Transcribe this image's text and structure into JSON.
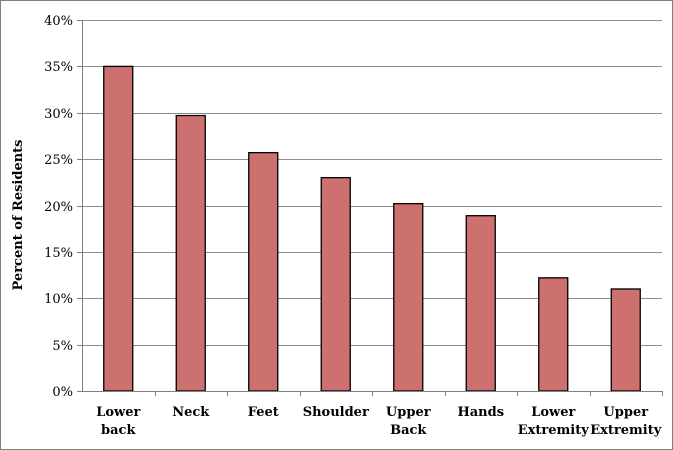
{
  "chart_data": {
    "type": "bar",
    "categories": [
      [
        "Lower",
        "back"
      ],
      [
        "Neck"
      ],
      [
        "Feet"
      ],
      [
        "Shoulder"
      ],
      [
        "Upper",
        "Back"
      ],
      [
        "Hands"
      ],
      [
        "Lower",
        "Extremity"
      ],
      [
        "Upper",
        "Extremity"
      ]
    ],
    "values": [
      35.0,
      29.7,
      25.7,
      23.0,
      20.2,
      18.9,
      12.2,
      11.0
    ],
    "ylabel": "Percent of Residents",
    "ylim": [
      0,
      40
    ],
    "yticks": [
      "0%",
      "5%",
      "10%",
      "15%",
      "20%",
      "25%",
      "30%",
      "35%",
      "40%"
    ],
    "grid": true,
    "bar_color": "#cd7070",
    "bar_edge_color": "#000000"
  }
}
